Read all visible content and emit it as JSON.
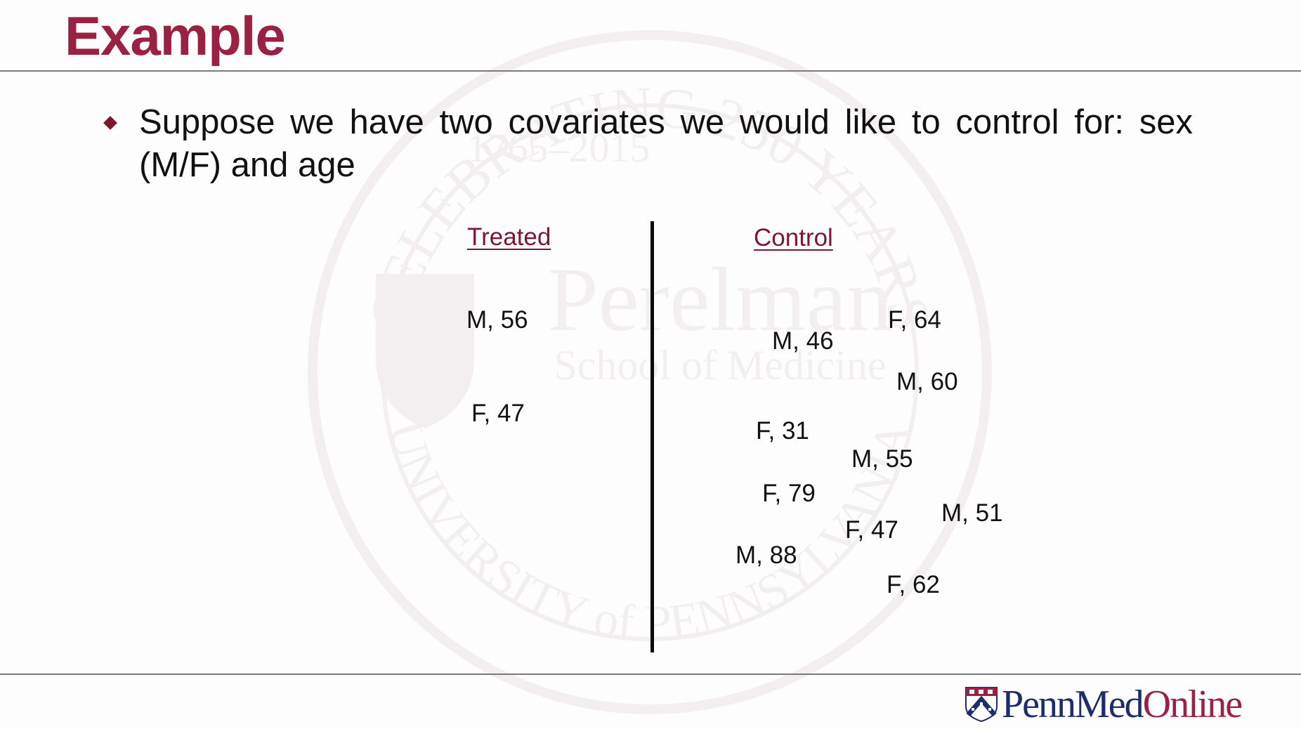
{
  "slide": {
    "title": "Example",
    "bullet": "Suppose we have two covariates we would like to control for: sex (M/F) and age"
  },
  "watermark": {
    "ring_text": "CELEBRATING 250 YEARS",
    "years": "1765–2015",
    "name": "Perelman",
    "school": "School of Medicine",
    "university": "UNIVERSITY of PENNSYLVANIA"
  },
  "groups": {
    "treated": {
      "header": "Treated",
      "entries": [
        "M, 56",
        "F, 47"
      ]
    },
    "control": {
      "header": "Control",
      "entries": [
        "F, 64",
        "M, 46",
        "M, 60",
        "F, 31",
        "M, 55",
        "F, 79",
        "M, 51",
        "F, 47",
        "M, 88",
        "F, 62"
      ]
    }
  },
  "logo": {
    "part1": "PennMed",
    "part2": "Online",
    "brand_navy": "#1d2d6b",
    "brand_red": "#9b2142"
  },
  "colors": {
    "title": "#9b2142",
    "header": "#7a1830",
    "bullet": "#7a1830"
  }
}
